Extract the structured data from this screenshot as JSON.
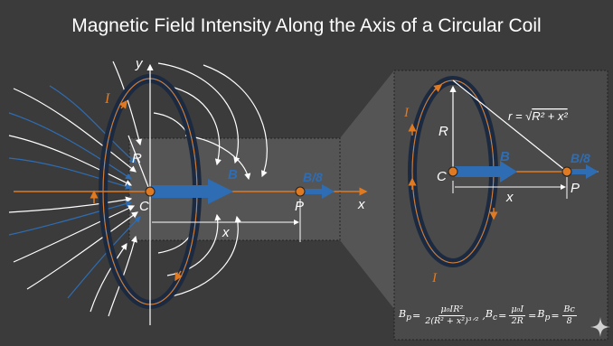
{
  "title": "Magnetic Field Intensity Along the Axis of a Circular Coil",
  "colors": {
    "background": "#3b3b3b",
    "coil_fill": "#1b2a40",
    "field_blue": "#2e6db4",
    "axis_orange": "#e07a22",
    "field_lines": "#ffffff",
    "panel": "#4f4f4f"
  },
  "labels": {
    "y_axis": "y",
    "current_left": "I",
    "radius_left": "R",
    "center_left": "C",
    "field_left": "B",
    "field_eighth_left": "B/8",
    "point_left": "P",
    "x_axis": "x",
    "distance_left": "x",
    "current_right_top": "I",
    "current_right_bottom": "I",
    "radius_right": "R",
    "center_right": "C",
    "field_right": "B",
    "field_eighth_right": "B/8",
    "point_right": "P",
    "distance_right": "x",
    "r_eq": "r = √",
    "r_expr": "R² + x²"
  },
  "formula": {
    "bp": "B",
    "bp_sub": "p",
    "eq": "=",
    "f1_num": "μ₀IR²",
    "f1_den": "2(R² + x²)³ᐟ²",
    "comma": ",",
    "bc": "B",
    "bc_sub": "c",
    "f2_num": "μ₀I",
    "f2_den": "2R",
    "bp2_sub": "p",
    "f3_num": "Bc",
    "f3_den": "8"
  },
  "icons": {
    "sparkle": "sparkle-icon"
  }
}
